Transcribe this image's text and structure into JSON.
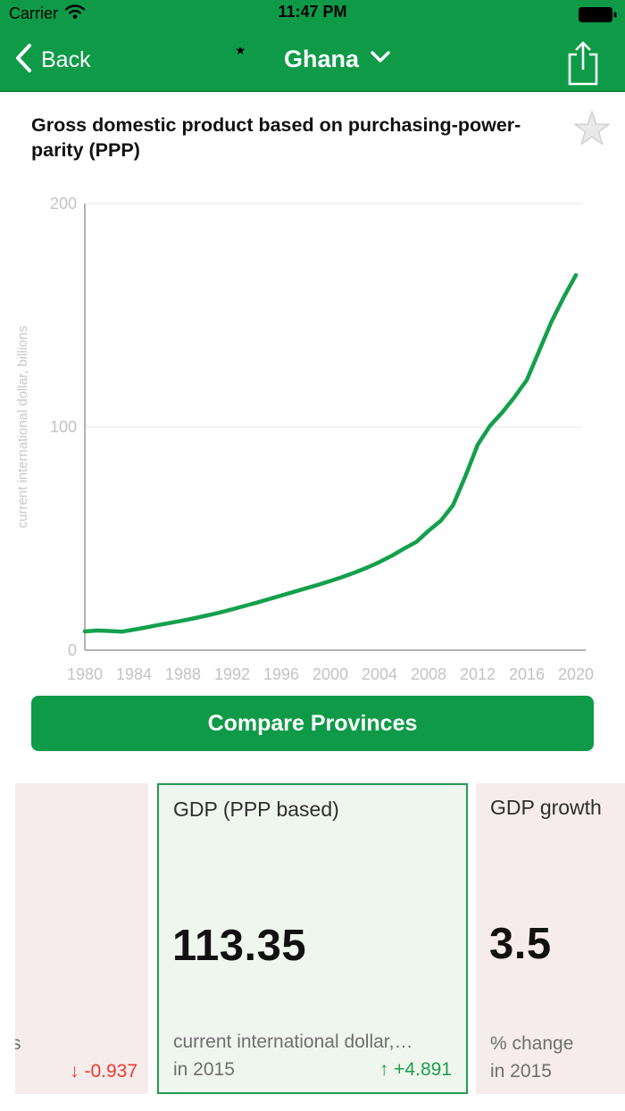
{
  "status_bar": {
    "carrier": "Carrier",
    "time": "11:47 PM"
  },
  "nav": {
    "back_label": "Back",
    "country": "Ghana"
  },
  "page": {
    "title": "Gross domestic product based on purchasing-power-parity (PPP)"
  },
  "chart_data": {
    "type": "line",
    "title": "",
    "xlabel": "",
    "ylabel": "current international dollar, billions",
    "ylim": [
      0,
      200
    ],
    "yticks": [
      0,
      100,
      200
    ],
    "xticks": [
      1980,
      1984,
      1988,
      1992,
      1996,
      2000,
      2004,
      2008,
      2012,
      2016,
      2020
    ],
    "grid": "horizontal gridlines at 100 and 200, light gray",
    "legend": "none",
    "line_color": "#14a04c",
    "x": [
      1980,
      1981,
      1982,
      1983,
      1984,
      1985,
      1986,
      1987,
      1988,
      1989,
      1990,
      1991,
      1992,
      1993,
      1994,
      1995,
      1996,
      1997,
      1998,
      1999,
      2000,
      2001,
      2002,
      2003,
      2004,
      2005,
      2006,
      2007,
      2008,
      2009,
      2010,
      2011,
      2012,
      2013,
      2014,
      2015,
      2016,
      2017,
      2018,
      2019,
      2020
    ],
    "values": [
      8.4,
      8.8,
      8.6,
      8.3,
      9.2,
      10.2,
      11.3,
      12.3,
      13.3,
      14.4,
      15.6,
      16.9,
      18.3,
      19.8,
      21.3,
      22.9,
      24.5,
      26.1,
      27.7,
      29.3,
      31.0,
      32.8,
      34.8,
      37.0,
      39.5,
      42.3,
      45.5,
      48.5,
      53.5,
      58.0,
      65.0,
      78.0,
      92.0,
      100.5,
      106.5,
      113.35,
      121.0,
      134.0,
      147.0,
      158.0,
      168.0
    ]
  },
  "compare_button": {
    "label": "Compare Provinces"
  },
  "cards": {
    "left": {
      "description_tail": "s",
      "change_arrow": "↓",
      "change_value": "-0.937"
    },
    "center": {
      "title": "GDP (PPP based)",
      "value": "113.35",
      "description": "current international dollar,…",
      "year_label": "in 2015",
      "change_arrow": "↑",
      "change_value": "+4.891"
    },
    "right": {
      "title": "GDP growth",
      "value": "3.5",
      "description": "% change",
      "year_label": "in 2015"
    }
  },
  "icons": {
    "wifi": "wifi-icon",
    "battery": "battery-icon",
    "back_chevron": "chevron-left-icon",
    "country_chevron": "chevron-down-icon",
    "share": "share-icon",
    "favorite": "star-icon",
    "flag": "ghana-flag"
  },
  "colors": {
    "primary_green": "#0f9a48",
    "chart_line_green": "#14a04c",
    "card_border_green": "#229b53",
    "card_green_bg": "#eff6ed",
    "card_pink_bg": "#f5eceb",
    "change_up_green": "#1b9e4e",
    "change_down_red": "#f0382f",
    "axis_gray": "#c3c3c3"
  }
}
